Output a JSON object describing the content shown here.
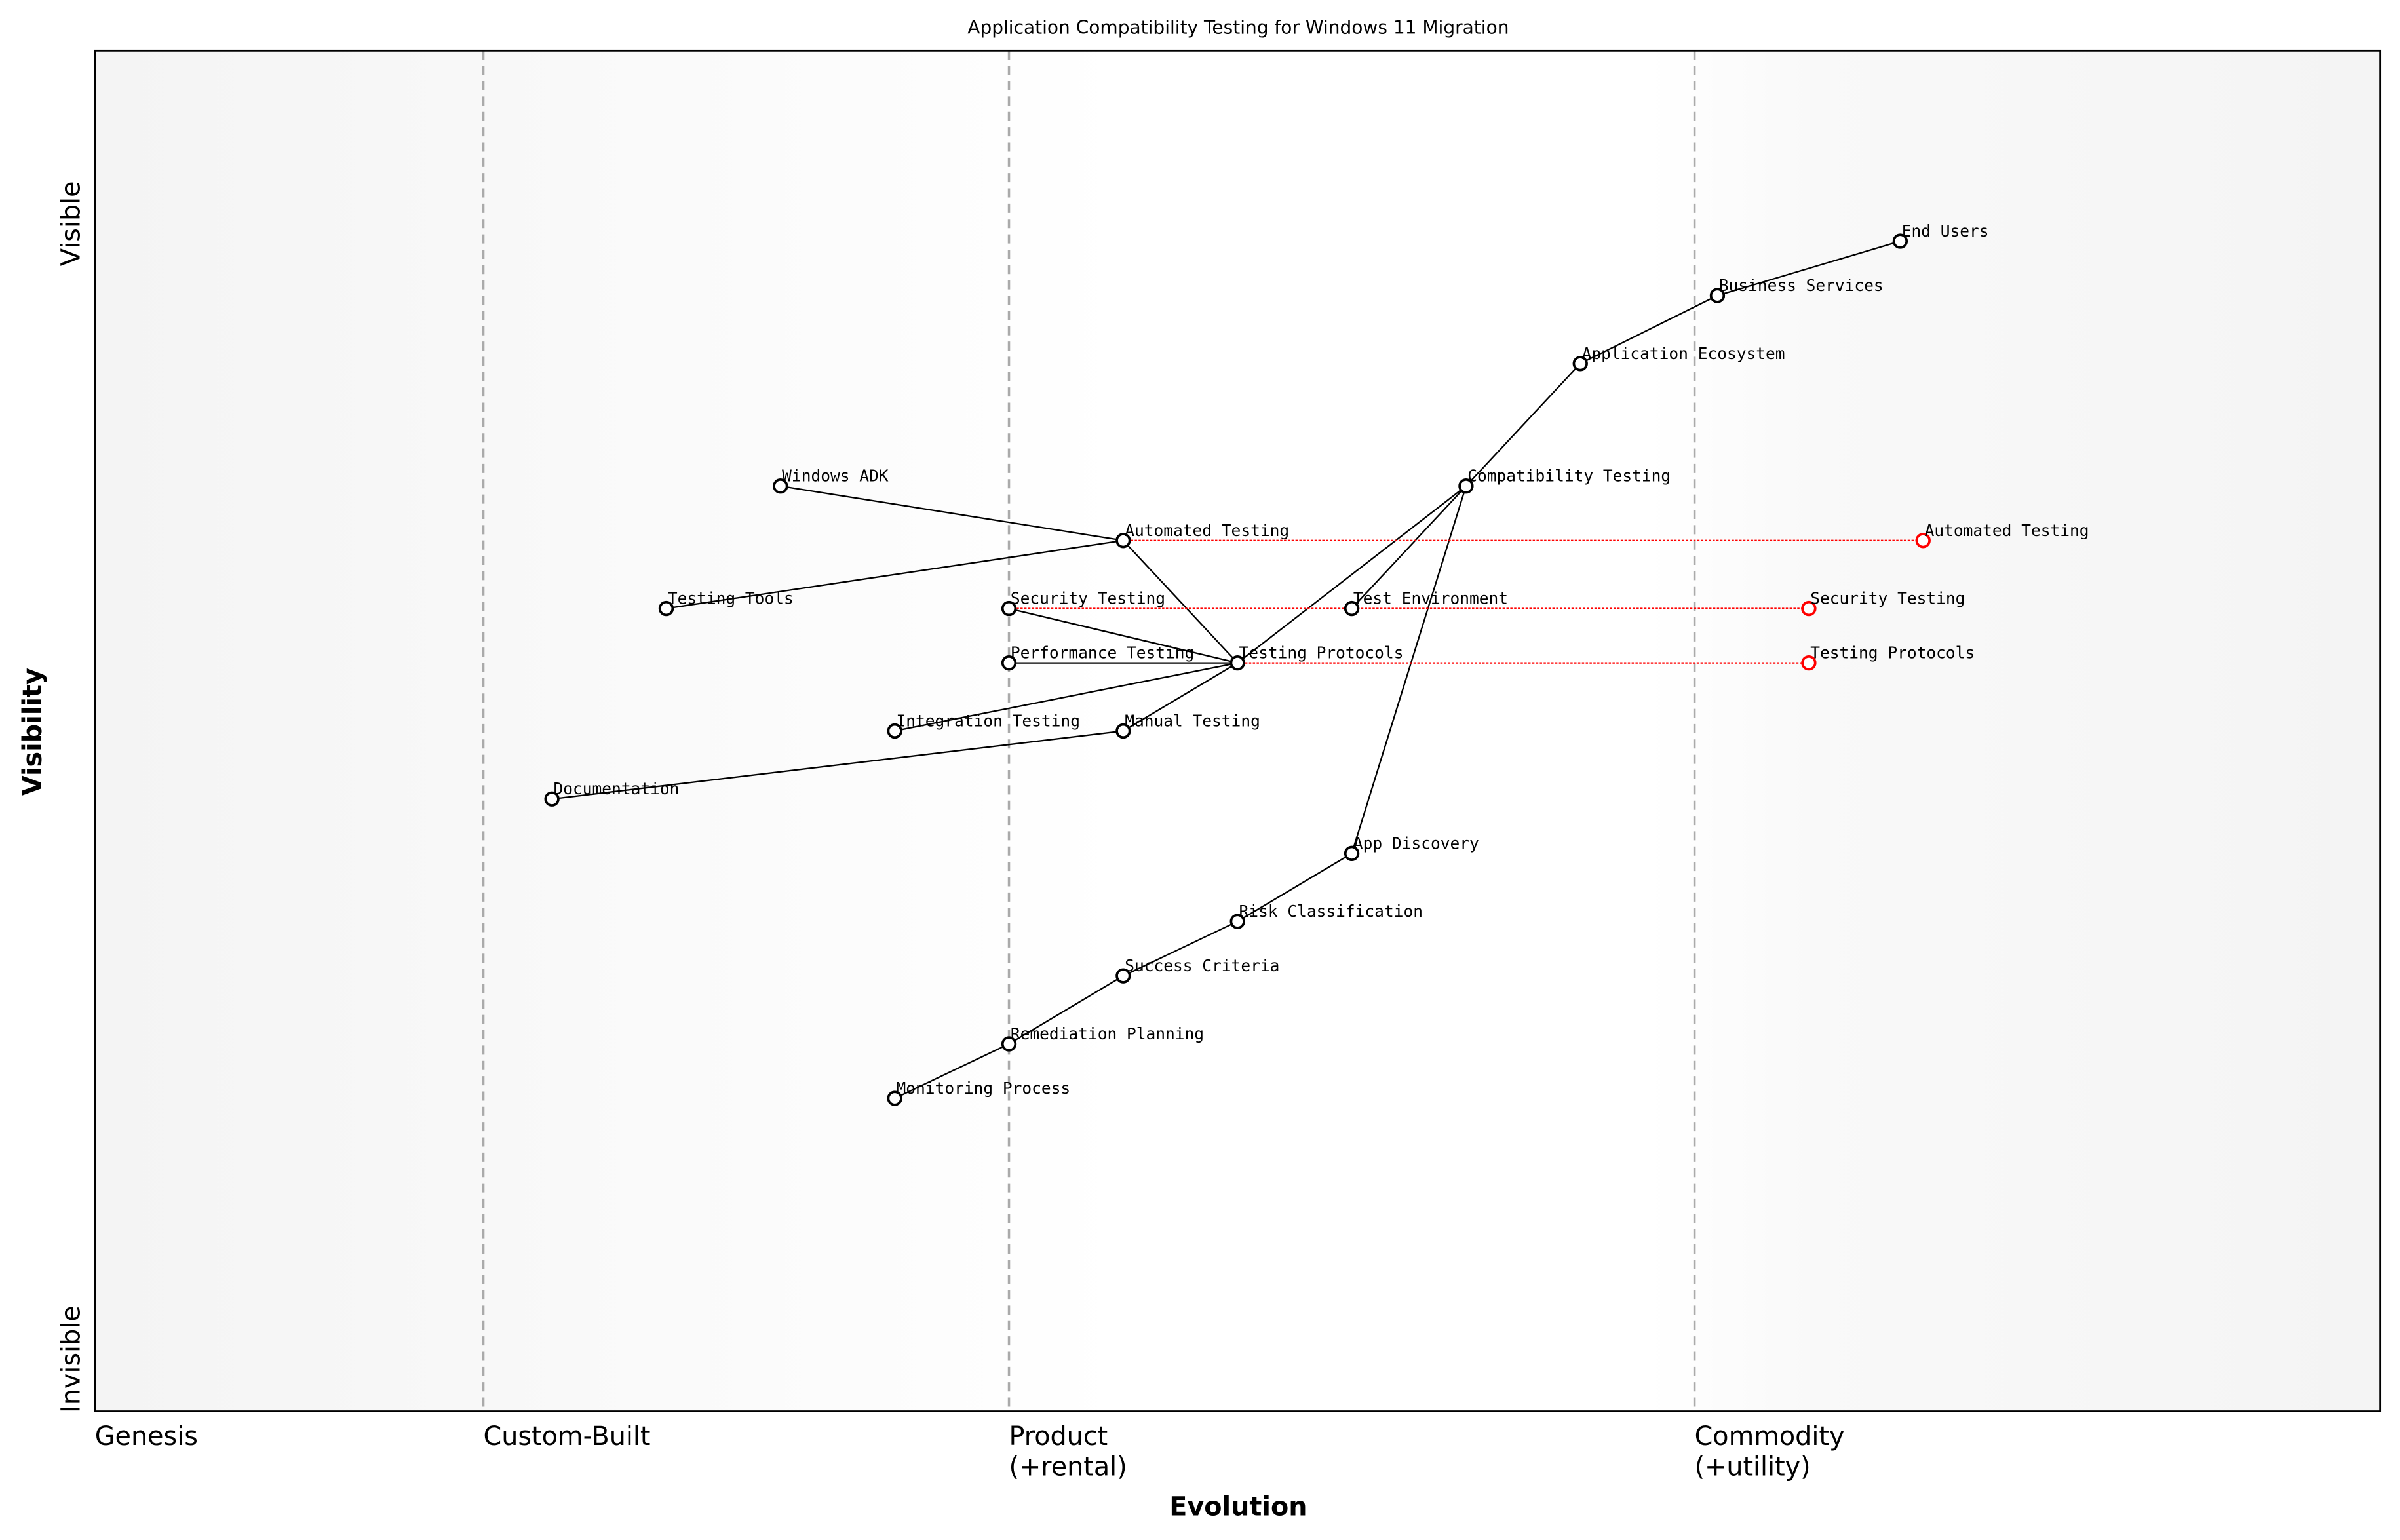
{
  "title": "Application Compatibility Testing for Windows 11 Migration",
  "x_axis": {
    "title": "Evolution",
    "stages": [
      {
        "label": [
          "Genesis"
        ],
        "at": 0.0
      },
      {
        "label": [
          "Custom-Built"
        ],
        "at": 0.17
      },
      {
        "label": [
          "Product",
          "(+rental)"
        ],
        "at": 0.4
      },
      {
        "label": [
          "Commodity",
          "(+utility)"
        ],
        "at": 0.7
      }
    ]
  },
  "y_axis": {
    "title": "Visibility",
    "top_label": "Visible",
    "bottom_label": "Invisible"
  },
  "colors": {
    "component": "#000000",
    "evolved": "#ff0000",
    "divider": "#aaaaaa",
    "edge_bg": "#f4f4f4"
  },
  "chart_data": {
    "type": "wardley-map",
    "xlim": [
      0,
      1
    ],
    "ylim": [
      0,
      1
    ],
    "components": [
      {
        "name": "End Users",
        "evolution": 0.79,
        "visibility": 0.86
      },
      {
        "name": "Business Services",
        "evolution": 0.71,
        "visibility": 0.82
      },
      {
        "name": "Application Ecosystem",
        "evolution": 0.65,
        "visibility": 0.77
      },
      {
        "name": "Compatibility Testing",
        "evolution": 0.6,
        "visibility": 0.68
      },
      {
        "name": "Windows ADK",
        "evolution": 0.3,
        "visibility": 0.68
      },
      {
        "name": "Automated Testing",
        "evolution": 0.45,
        "visibility": 0.64
      },
      {
        "name": "Testing Tools",
        "evolution": 0.25,
        "visibility": 0.59
      },
      {
        "name": "Security Testing",
        "evolution": 0.4,
        "visibility": 0.59
      },
      {
        "name": "Test Environment",
        "evolution": 0.55,
        "visibility": 0.59
      },
      {
        "name": "Performance Testing",
        "evolution": 0.4,
        "visibility": 0.55
      },
      {
        "name": "Testing Protocols",
        "evolution": 0.5,
        "visibility": 0.55
      },
      {
        "name": "Integration Testing",
        "evolution": 0.35,
        "visibility": 0.5
      },
      {
        "name": "Manual Testing",
        "evolution": 0.45,
        "visibility": 0.5
      },
      {
        "name": "Documentation",
        "evolution": 0.2,
        "visibility": 0.45
      },
      {
        "name": "App Discovery",
        "evolution": 0.55,
        "visibility": 0.41
      },
      {
        "name": "Risk Classification",
        "evolution": 0.5,
        "visibility": 0.36
      },
      {
        "name": "Success Criteria",
        "evolution": 0.45,
        "visibility": 0.32
      },
      {
        "name": "Remediation Planning",
        "evolution": 0.4,
        "visibility": 0.27
      },
      {
        "name": "Monitoring Process",
        "evolution": 0.35,
        "visibility": 0.23
      }
    ],
    "links": [
      [
        "End Users",
        "Business Services"
      ],
      [
        "Business Services",
        "Application Ecosystem"
      ],
      [
        "Application Ecosystem",
        "Compatibility Testing"
      ],
      [
        "Compatibility Testing",
        "Test Environment"
      ],
      [
        "Compatibility Testing",
        "Testing Protocols"
      ],
      [
        "Compatibility Testing",
        "App Discovery"
      ],
      [
        "Testing Protocols",
        "Automated Testing"
      ],
      [
        "Testing Protocols",
        "Security Testing"
      ],
      [
        "Testing Protocols",
        "Performance Testing"
      ],
      [
        "Testing Protocols",
        "Integration Testing"
      ],
      [
        "Testing Protocols",
        "Manual Testing"
      ],
      [
        "Automated Testing",
        "Windows ADK"
      ],
      [
        "Automated Testing",
        "Testing Tools"
      ],
      [
        "Manual Testing",
        "Documentation"
      ],
      [
        "App Discovery",
        "Risk Classification"
      ],
      [
        "Risk Classification",
        "Success Criteria"
      ],
      [
        "Success Criteria",
        "Remediation Planning"
      ],
      [
        "Remediation Planning",
        "Monitoring Process"
      ]
    ],
    "evolutions": [
      {
        "name": "Automated Testing",
        "to": 0.8
      },
      {
        "name": "Security Testing",
        "to": 0.75
      },
      {
        "name": "Testing Protocols",
        "to": 0.75
      }
    ]
  }
}
